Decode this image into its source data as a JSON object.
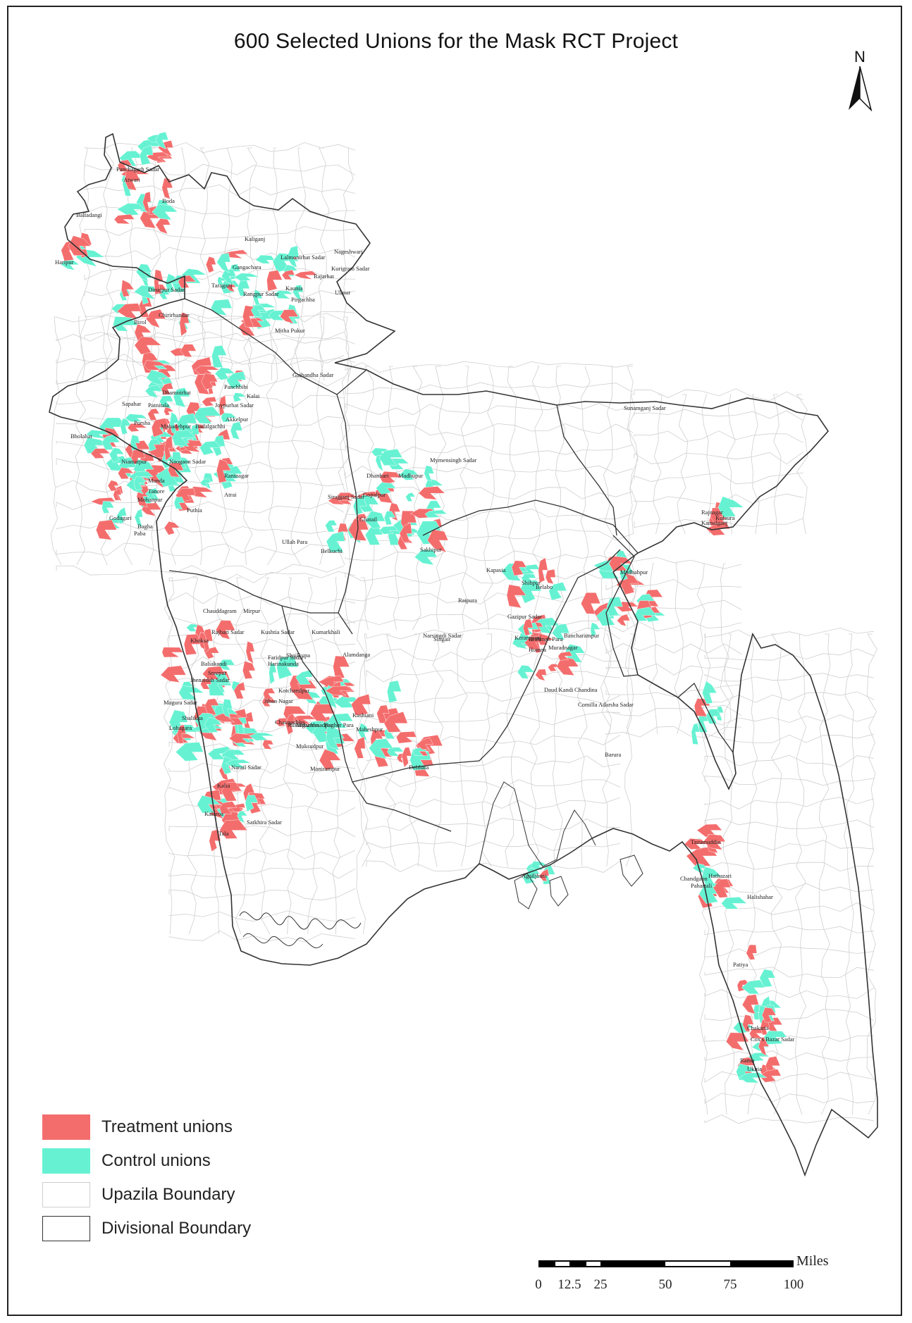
{
  "title": "600 Selected Unions for the Mask RCT Project",
  "north_label": "N",
  "colors": {
    "treatment": "#f46d6d",
    "control": "#66f2d2",
    "upazila_boundary": "#cfcfcf",
    "division_boundary": "#333333"
  },
  "legend": [
    {
      "id": "treatment",
      "label": "Treatment unions",
      "fill": "#f46d6d",
      "stroke": "#f46d6d"
    },
    {
      "id": "control",
      "label": "Control unions",
      "fill": "#66f2d2",
      "stroke": "#66f2d2"
    },
    {
      "id": "upazila",
      "label": "Upazila Boundary",
      "fill": "#ffffff",
      "stroke": "#cfcfcf"
    },
    {
      "id": "division",
      "label": "Divisional Boundary",
      "fill": "#ffffff",
      "stroke": "#333333"
    }
  ],
  "scale": {
    "unit": "Miles",
    "ticks": [
      "0",
      "12.5",
      "25",
      "50",
      "75",
      "100"
    ]
  },
  "place_labels": [
    "Panchagarh Sadar",
    "Atwari",
    "Boda",
    "Baliadangi",
    "Haripur",
    "Kaliganj",
    "Lalmonirhat Sadar",
    "Nageshwari",
    "Kurigram Sadar",
    "Gangachara",
    "Taraganj",
    "Rajarhat",
    "Rangpur Sadar",
    "Kaunia",
    "Ulipur",
    "Pirgachha",
    "Dinajpur Sadar",
    "Chirirbandar",
    "Birol",
    "Mitha Pukur",
    "Gaibandha Sadar",
    "Dhamoirhat",
    "Panchbibi",
    "Sapahar",
    "Patnitala",
    "Joypurhat Sadar",
    "Kalai",
    "Akkelpur",
    "Porsha",
    "Mahadebpur",
    "Badalgachhi",
    "Bholahat",
    "Niamatpur",
    "Naogaon Sadar",
    "Manda",
    "Raninagar",
    "Tanore",
    "Mohanpur",
    "Atrai",
    "Godagari",
    "Puthia",
    "Bagha",
    "Paba",
    "Sunamganj Sadar",
    "Mymensingh Sadar",
    "Dhanbari",
    "Madhupur",
    "Gopalpur",
    "Sirajganj Sadar",
    "Ghatail",
    "Ullah Para",
    "Belkuchi",
    "Sakhipur",
    "Rajnagar",
    "Kulaura",
    "Kamalganj",
    "Kapasia",
    "Madhabpur",
    "Shibpur",
    "Belabo",
    "Raipura",
    "Gazipur Sadar",
    "Narsingdi Sadar",
    "Singair",
    "Keraniganj",
    "Bancharampur",
    "Muradnagar",
    "Brahman Para",
    "Homna",
    "Daud Kandi",
    "Chandina",
    "Comilla Adarsha Sadar",
    "Barura",
    "Chauddagram",
    "Mirpur",
    "Kumarkhali",
    "Rajbari Sadar",
    "Kushtia Sadar",
    "Khoksa",
    "Alamdanga",
    "Faridpur Sadar",
    "Shailkupa",
    "Baliakandi",
    "Harinakunda",
    "Sreepur",
    "Jhenaidah Sadar",
    "Kotchandpur",
    "Magura Sadar",
    "Jiban Nagar",
    "Shalikha",
    "Chaugachha",
    "Jhikargachha",
    "Bagher Para",
    "Mohammadpur",
    "Lohagara",
    "Maheshpur",
    "Kashiani",
    "Muksudpur",
    "Narail Sadar",
    "Manirampur",
    "Kalia",
    "Kalaroa",
    "Satkhira Sadar",
    "Tala",
    "Debhata",
    "Agailjhara",
    "Tazumuddin",
    "Hathazari",
    "Chandgaon",
    "Pahartali",
    "Halishahar",
    "Patiya",
    "Chakaria",
    "Cox's Bazar Sadar",
    "Ramu",
    "Ukhia"
  ]
}
